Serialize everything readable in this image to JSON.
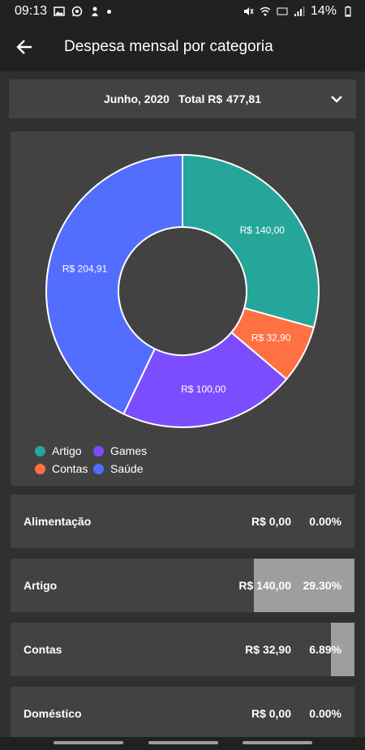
{
  "status": {
    "time": "09:13",
    "battery": "14%"
  },
  "app_bar": {
    "title": "Despesa mensal por categoria"
  },
  "month_bar": {
    "month": "Junho, 2020",
    "total_label": "Total R$",
    "total": "477,81"
  },
  "chart_data": {
    "type": "pie",
    "donut": true,
    "slices": [
      {
        "label": "Artigo",
        "value": 140.0,
        "text": "R$  140,00",
        "color": "#26a69a"
      },
      {
        "label": "Contas",
        "value": 32.9,
        "text": "R$  32,90",
        "color": "#ff7043"
      },
      {
        "label": "Games",
        "value": 100.0,
        "text": "R$  100,00",
        "color": "#7c4dff"
      },
      {
        "label": "Saúde",
        "value": 204.91,
        "text": "R$  204,91",
        "color": "#536dfe"
      }
    ]
  },
  "legend": [
    {
      "label": "Artigo",
      "color": "#26a69a"
    },
    {
      "label": "Games",
      "color": "#7c4dff"
    },
    {
      "label": "Contas",
      "color": "#ff7043"
    },
    {
      "label": "Saúde",
      "color": "#536dfe"
    }
  ],
  "categories": [
    {
      "name": "Alimentação",
      "amount": "R$  0,00",
      "percent": "0.00%",
      "share": 0.0
    },
    {
      "name": "Artigo",
      "amount": "R$  140,00",
      "percent": "29.30%",
      "share": 0.293
    },
    {
      "name": "Contas",
      "amount": "R$  32,90",
      "percent": "6.89%",
      "share": 0.0689
    },
    {
      "name": "Doméstico",
      "amount": "R$  0,00",
      "percent": "0.00%",
      "share": 0.0
    }
  ]
}
